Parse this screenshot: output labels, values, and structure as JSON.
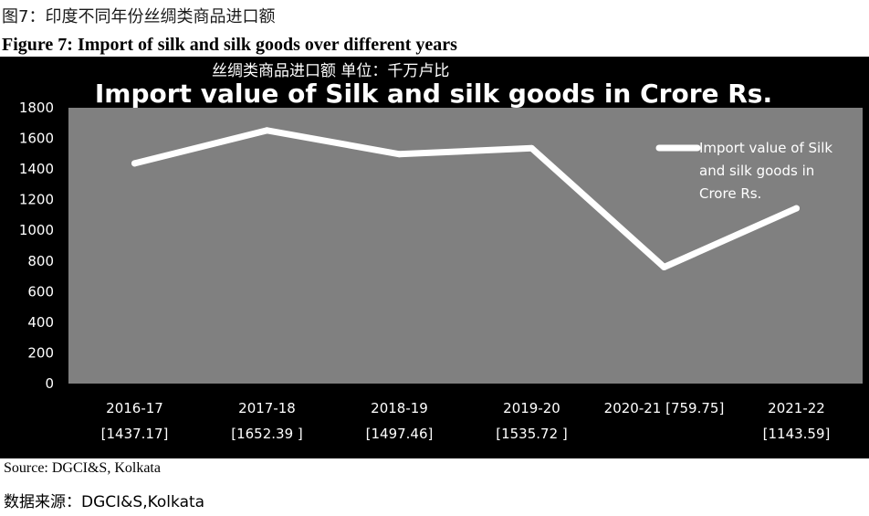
{
  "figure": {
    "title_cn": "图7：印度不同年份丝绸类商品进口额",
    "title_en": "Figure 7: Import of silk and silk goods over different years",
    "subtitle_cn": "丝绸类商品进口额     单位：千万卢比",
    "source_en": "Source: DGCI&S, Kolkata",
    "source_cn": "数据来源：DGCI&S,Kolkata"
  },
  "chart_data": {
    "type": "line",
    "title": "Import value of Silk and silk goods in Crore Rs.",
    "xlabel": "",
    "ylabel": "",
    "categories": [
      "2016-17",
      "2017-18",
      "2018-19",
      "2019-20",
      "2020-21",
      "2021-22"
    ],
    "category_labels": [
      [
        "2016-17",
        "[1437.17]"
      ],
      [
        "2017-18",
        "[1652.39 ]"
      ],
      [
        "2018-19",
        "[1497.46]"
      ],
      [
        "2019-20",
        "[1535.72 ]"
      ],
      [
        "2020-21 [759.75]",
        ""
      ],
      [
        "2021-22",
        "[1143.59]"
      ]
    ],
    "series": [
      {
        "name": "Import value of Silk and silk goods in Crore Rs.",
        "values": [
          1437.17,
          1652.39,
          1497.46,
          1535.72,
          759.75,
          1143.59
        ],
        "color": "#ffffff"
      }
    ],
    "legend_lines": [
      "Import value of Silk",
      "and silk goods in",
      "Crore Rs."
    ],
    "yticks": [
      0,
      200,
      400,
      600,
      800,
      1000,
      1200,
      1400,
      1600,
      1800
    ],
    "ylim": [
      0,
      1800
    ],
    "grid": false,
    "legend_position": "top-right",
    "colors": {
      "background": "#000000",
      "plot_area": "#808080",
      "line": "#ffffff",
      "text": "#ffffff"
    }
  }
}
